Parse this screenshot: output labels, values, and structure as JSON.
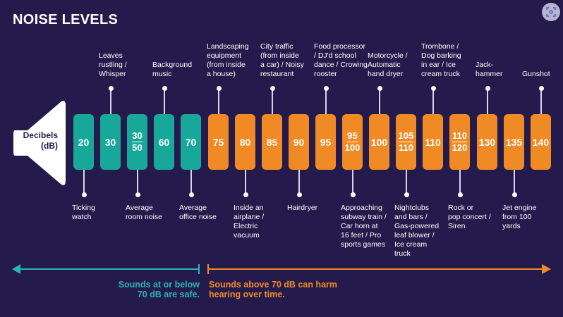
{
  "title": "NOISE LEVELS",
  "speaker_label_line1": "Decibels",
  "speaker_label_line2": "(dB)",
  "colors": {
    "background": "#241a4b",
    "safe": "#17a89a",
    "harmful": "#f08a24",
    "safe_text": "#2bb3b8",
    "harm_text": "#f08a2a"
  },
  "levels": [
    {
      "value": "20",
      "label": "Ticking\nwatch",
      "position": "bottom",
      "zone": "safe"
    },
    {
      "value": "30",
      "label": "Leaves\nrustling /\nWhisper",
      "position": "top",
      "zone": "safe"
    },
    {
      "value": "30",
      "value2": "50",
      "label": "Average\nroom noise",
      "position": "bottom",
      "zone": "safe"
    },
    {
      "value": "60",
      "label": "Background\nmusic",
      "position": "top",
      "zone": "safe"
    },
    {
      "value": "70",
      "label": "Average\noffice noise",
      "position": "bottom",
      "zone": "safe"
    },
    {
      "value": "75",
      "label": "Landscaping\nequipment\n(from inside\na house)",
      "position": "top",
      "zone": "harmful"
    },
    {
      "value": "80",
      "label": "Inside an\nairplane /\nElectric\nvacuum",
      "position": "bottom",
      "zone": "harmful"
    },
    {
      "value": "85",
      "label": "City traffic\n(from inside\na car) / Noisy\nrestaurant",
      "position": "top",
      "zone": "harmful"
    },
    {
      "value": "90",
      "label": "Hairdryer",
      "position": "bottom",
      "zone": "harmful"
    },
    {
      "value": "95",
      "label": "Food processor\n/ DJ'd school\ndance / Crowing\nrooster",
      "position": "top",
      "zone": "harmful"
    },
    {
      "value": "95",
      "value2": "100",
      "label": "Approaching\nsubway train /\nCar horn at\n16 feet / Pro\nsports games",
      "position": "bottom",
      "zone": "harmful"
    },
    {
      "value": "100",
      "label": "Motorcycle /\nAutomatic\nhand dryer",
      "position": "top",
      "zone": "harmful"
    },
    {
      "value": "105",
      "value2": "110",
      "label": "Nightclubs\nand bars /\nGas-powered\nleaf blower /\nIce cream\ntruck",
      "position": "bottom",
      "zone": "harmful"
    },
    {
      "value": "110",
      "label": "Trombone /\nDog barking\nin ear / Ice\ncream truck",
      "position": "top",
      "zone": "harmful"
    },
    {
      "value": "110",
      "value2": "120",
      "label": "Rock or\npop concert /\nSiren",
      "position": "bottom",
      "zone": "harmful"
    },
    {
      "value": "130",
      "label": "Jack-\nhammer",
      "position": "top",
      "zone": "harmful"
    },
    {
      "value": "135",
      "label": "Jet engine\nfrom 100\nyards",
      "position": "bottom",
      "zone": "harmful"
    },
    {
      "value": "140",
      "label": "Gunshot",
      "position": "top",
      "zone": "harmful"
    }
  ],
  "legend": {
    "safe_text": "Sounds at or below\n70 dB are safe.",
    "harm_text": "Sounds above 70 dB can harm\nhearing over time."
  }
}
